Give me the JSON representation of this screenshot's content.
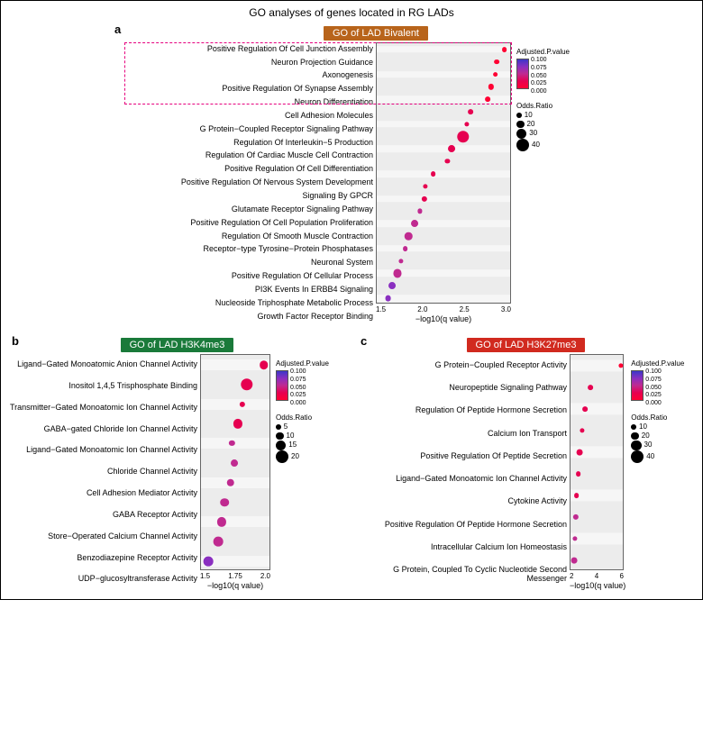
{
  "figure": {
    "main_title": "GO analyses of genes located in RG LADs",
    "background": "#ffffff",
    "border_color": "#000000"
  },
  "palette": {
    "pvalue_colors": [
      "#3b36c8",
      "#8a2fc0",
      "#c02a90",
      "#e60050",
      "#ff0033"
    ],
    "pvalue_stops": [
      0.1,
      0.075,
      0.05,
      0.025,
      0.0
    ]
  },
  "panel_a": {
    "letter": "a",
    "title": "GO of LAD Bivalent",
    "title_bg": "#b8641b",
    "plot_bg": "#ececec",
    "x_label": "−log10(q value)",
    "x_ticks": [
      "1.5",
      "2.0",
      "2.5",
      "3.0"
    ],
    "x_min": 1.3,
    "x_max": 3.1,
    "highlight_rows": [
      0,
      1,
      2,
      3,
      4
    ],
    "odds_legend": [
      10,
      20,
      30,
      40
    ],
    "rows": [
      {
        "label": "Positive Regulation Of Cell Junction Assembly",
        "x": 3.0,
        "p": 0.0,
        "odds": 10
      },
      {
        "label": "Neuron Projection Guidance",
        "x": 2.9,
        "p": 0.0,
        "odds": 10
      },
      {
        "label": "Axonogenesis",
        "x": 2.88,
        "p": 0.0,
        "odds": 10
      },
      {
        "label": "Positive Regulation Of Synapse Assembly",
        "x": 2.82,
        "p": 0.0,
        "odds": 12
      },
      {
        "label": "Neuron Differentiation",
        "x": 2.78,
        "p": 0.0,
        "odds": 10
      },
      {
        "label": "Cell Adhesion Molecules",
        "x": 2.55,
        "p": 0.005,
        "odds": 10
      },
      {
        "label": "G Protein−Coupled Receptor Signaling Pathway",
        "x": 2.5,
        "p": 0.005,
        "odds": 8
      },
      {
        "label": "Regulation Of Interleukin−5 Production",
        "x": 2.45,
        "p": 0.005,
        "odds": 38
      },
      {
        "label": "Regulation Of Cardiac Muscle Cell Contraction",
        "x": 2.3,
        "p": 0.012,
        "odds": 18
      },
      {
        "label": "Positive Regulation Of Cell Differentiation",
        "x": 2.24,
        "p": 0.012,
        "odds": 8
      },
      {
        "label": "Positive Regulation Of Nervous System Development",
        "x": 2.05,
        "p": 0.02,
        "odds": 10
      },
      {
        "label": "Signaling By GPCR",
        "x": 1.95,
        "p": 0.025,
        "odds": 8
      },
      {
        "label": "Glutamate Receptor Signaling Pathway",
        "x": 1.93,
        "p": 0.025,
        "odds": 12
      },
      {
        "label": "Positive Regulation Of Cell Population Proliferation",
        "x": 1.87,
        "p": 0.03,
        "odds": 8
      },
      {
        "label": "Regulation Of Smooth Muscle Contraction",
        "x": 1.8,
        "p": 0.03,
        "odds": 18
      },
      {
        "label": "Receptor−type Tyrosine−Protein Phosphatases",
        "x": 1.72,
        "p": 0.04,
        "odds": 20
      },
      {
        "label": "Neuronal System",
        "x": 1.68,
        "p": 0.04,
        "odds": 10
      },
      {
        "label": "Positive Regulation Of Cellular Process",
        "x": 1.62,
        "p": 0.045,
        "odds": 8
      },
      {
        "label": "PI3K Events In ERBB4 Signaling",
        "x": 1.57,
        "p": 0.048,
        "odds": 22
      },
      {
        "label": "Nucleoside Triphosphate Metabolic Process",
        "x": 1.5,
        "p": 0.052,
        "odds": 18
      },
      {
        "label": "Growth Factor Receptor Binding",
        "x": 1.45,
        "p": 0.055,
        "odds": 14
      }
    ]
  },
  "panel_b": {
    "letter": "b",
    "title": "GO of LAD H3K4me3",
    "title_bg": "#1a7a3a",
    "plot_bg": "#ececec",
    "x_label": "−log10(q value)",
    "x_ticks": [
      "1.5",
      "1.75",
      "2.0"
    ],
    "x_min": 1.2,
    "x_max": 2.15,
    "odds_legend": [
      5,
      10,
      15,
      20
    ],
    "rows": [
      {
        "label": "Ligand−Gated Monoatomic Anion Channel Activity",
        "x": 2.05,
        "p": 0.005,
        "odds": 12
      },
      {
        "label": "Inositol 1,4,5 Trisphosphate Binding",
        "x": 1.82,
        "p": 0.015,
        "odds": 19
      },
      {
        "label": "Transmitter−Gated Monoatomic Ion Channel Activity",
        "x": 1.76,
        "p": 0.02,
        "odds": 6
      },
      {
        "label": "GABA−gated Chloride Ion Channel Activity",
        "x": 1.7,
        "p": 0.025,
        "odds": 13
      },
      {
        "label": "Ligand−Gated Monoatomic Ion Channel Activity",
        "x": 1.62,
        "p": 0.03,
        "odds": 6
      },
      {
        "label": "Chloride Channel Activity",
        "x": 1.65,
        "p": 0.03,
        "odds": 9
      },
      {
        "label": "Cell Adhesion Mediator Activity",
        "x": 1.6,
        "p": 0.035,
        "odds": 10
      },
      {
        "label": "GABA Receptor Activity",
        "x": 1.52,
        "p": 0.04,
        "odds": 12
      },
      {
        "label": "Store−Operated Calcium Channel Activity",
        "x": 1.48,
        "p": 0.045,
        "odds": 13
      },
      {
        "label": "Benzodiazepine Receptor Activity",
        "x": 1.43,
        "p": 0.05,
        "odds": 14
      },
      {
        "label": "UDP−glucosyltransferase Activity",
        "x": 1.3,
        "p": 0.06,
        "odds": 14
      }
    ]
  },
  "panel_c": {
    "letter": "c",
    "title": "GO of LAD H3K27me3",
    "title_bg": "#d12a1f",
    "plot_bg": "#ececec",
    "x_label": "−log10(q value)",
    "x_ticks": [
      "2",
      "4",
      "6"
    ],
    "x_min": 1.5,
    "x_max": 7.0,
    "odds_legend": [
      10,
      20,
      30,
      40
    ],
    "rows": [
      {
        "label": "G Protein−Coupled Receptor Activity",
        "x": 6.6,
        "p": 0.0,
        "odds": 8
      },
      {
        "label": "Neuropeptide Signaling Pathway",
        "x": 3.5,
        "p": 0.002,
        "odds": 10
      },
      {
        "label": "Regulation Of Peptide Hormone Secretion",
        "x": 3.0,
        "p": 0.005,
        "odds": 10
      },
      {
        "label": "Calcium Ion Transport",
        "x": 2.7,
        "p": 0.01,
        "odds": 8
      },
      {
        "label": "Positive Regulation Of Peptide Secretion",
        "x": 2.4,
        "p": 0.015,
        "odds": 14
      },
      {
        "label": "Ligand−Gated Monoatomic Ion Channel Activity",
        "x": 2.3,
        "p": 0.02,
        "odds": 10
      },
      {
        "label": "Cytokine Activity",
        "x": 2.1,
        "p": 0.025,
        "odds": 10
      },
      {
        "label": "Positive Regulation Of Peptide Hormone Secretion",
        "x": 2.05,
        "p": 0.028,
        "odds": 12
      },
      {
        "label": "Intracellular Calcium Ion Homeostasis",
        "x": 1.95,
        "p": 0.035,
        "odds": 8
      },
      {
        "label": "G Protein, Coupled To Cyclic Nucleotide Second Messenger",
        "x": 1.85,
        "p": 0.04,
        "odds": 14
      }
    ]
  },
  "legend_labels": {
    "pvalue_title": "Adjusted.P.value",
    "odds_title": "Odds.Ratio"
  }
}
